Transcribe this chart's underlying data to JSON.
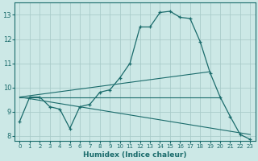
{
  "xlabel": "Humidex (Indice chaleur)",
  "ylabel": "",
  "xlim": [
    -0.5,
    23.5
  ],
  "ylim": [
    7.8,
    13.5
  ],
  "xticks": [
    0,
    1,
    2,
    3,
    4,
    5,
    6,
    7,
    8,
    9,
    10,
    11,
    12,
    13,
    14,
    15,
    16,
    17,
    18,
    19,
    20,
    21,
    22,
    23
  ],
  "yticks": [
    8,
    9,
    10,
    11,
    12,
    13
  ],
  "bg_color": "#cce8e6",
  "grid_color": "#aaccca",
  "line_color": "#1a6b6b",
  "main_line": {
    "x": [
      0,
      1,
      2,
      3,
      4,
      5,
      6,
      7,
      8,
      9,
      10,
      11,
      12,
      13,
      14,
      15,
      16,
      17,
      18,
      19,
      20,
      21,
      22,
      23
    ],
    "y": [
      8.6,
      9.6,
      9.6,
      9.2,
      9.1,
      8.3,
      9.2,
      9.3,
      9.8,
      9.9,
      10.4,
      11.0,
      12.5,
      12.5,
      13.1,
      13.15,
      12.9,
      12.85,
      11.9,
      10.6,
      9.6,
      8.8,
      8.05,
      7.85
    ]
  },
  "straight_lines": [
    {
      "x": [
        0,
        20
      ],
      "y": [
        9.6,
        9.6
      ]
    },
    {
      "x": [
        0,
        19
      ],
      "y": [
        9.6,
        10.65
      ]
    },
    {
      "x": [
        0,
        23
      ],
      "y": [
        9.6,
        8.05
      ]
    }
  ]
}
